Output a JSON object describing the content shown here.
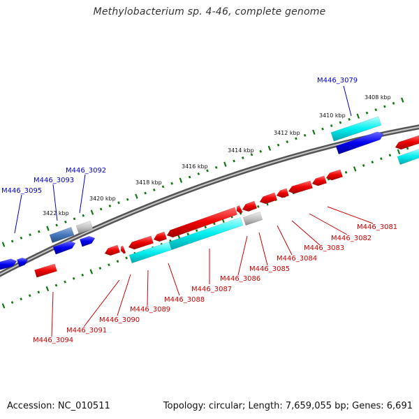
{
  "header": {
    "title": "Methylobacterium sp. 4-46, complete genome"
  },
  "footer": {
    "accession": "Accession: NC_010511",
    "topology": "Topology: circular; Length: 7,659,055 bp; Genes: 6,691"
  },
  "colors": {
    "forward_cds": "#0000ee",
    "reverse_cds": "#ee0000",
    "rna": "#00dddd",
    "pseudogene": "#bbbbbb",
    "other": "#4477bb",
    "backbone": "#888888",
    "tick": "#117711",
    "label_forward": "#0000cc",
    "label_reverse": "#cc0000"
  },
  "ruler_labels": [
    "3408 kbp",
    "3410 kbp",
    "3412 kbp",
    "3414 kbp",
    "3416 kbp",
    "3418 kbp",
    "3420 kbp",
    "3422 kbp"
  ],
  "forward_gene_labels": [
    "M446_3079",
    "M446_3092",
    "M446_3093",
    "M446_3095"
  ],
  "reverse_gene_labels": [
    "M446_3081",
    "M446_3082",
    "M446_3083",
    "M446_3084",
    "M446_3085",
    "M446_3086",
    "M446_3087",
    "M446_3088",
    "M446_3089",
    "M446_3090",
    "M446_3091",
    "M446_3094"
  ]
}
